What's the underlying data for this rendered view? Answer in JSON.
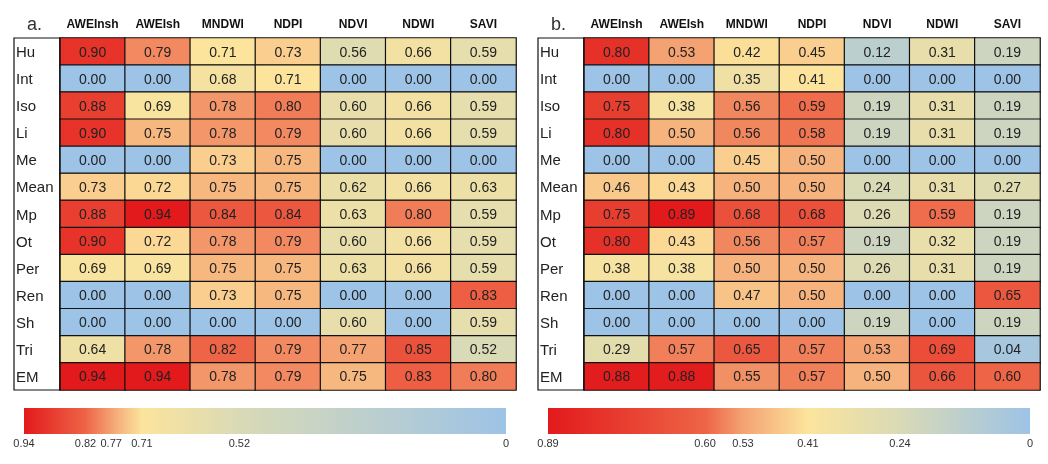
{
  "chart_data": [
    {
      "type": "heatmap",
      "title": "a.",
      "categories": [
        "AWEInsh",
        "AWEIsh",
        "MNDWI",
        "NDPI",
        "NDVI",
        "NDWI",
        "SAVI"
      ],
      "y_categories": [
        "Hu",
        "Int",
        "Iso",
        "Li",
        "Me",
        "Mean",
        "Mp",
        "Ot",
        "Per",
        "Ren",
        "Sh",
        "Tri",
        "EM"
      ],
      "cells": [
        [
          0.9,
          0.79,
          0.71,
          0.73,
          0.56,
          0.66,
          0.59
        ],
        [
          0.0,
          0.0,
          0.68,
          0.71,
          0.0,
          0.0,
          0.0
        ],
        [
          0.88,
          0.69,
          0.78,
          0.8,
          0.6,
          0.66,
          0.59
        ],
        [
          0.9,
          0.75,
          0.78,
          0.79,
          0.6,
          0.66,
          0.59
        ],
        [
          0.0,
          0.0,
          0.73,
          0.75,
          0.0,
          0.0,
          0.0
        ],
        [
          0.73,
          0.72,
          0.75,
          0.75,
          0.62,
          0.66,
          0.63
        ],
        [
          0.88,
          0.94,
          0.84,
          0.84,
          0.63,
          0.8,
          0.59
        ],
        [
          0.9,
          0.72,
          0.78,
          0.79,
          0.6,
          0.66,
          0.59
        ],
        [
          0.69,
          0.69,
          0.75,
          0.75,
          0.63,
          0.66,
          0.59
        ],
        [
          0.0,
          0.0,
          0.73,
          0.75,
          0.0,
          0.0,
          0.83
        ],
        [
          0.0,
          0.0,
          0.0,
          0.0,
          0.6,
          0.0,
          0.59
        ],
        [
          0.64,
          0.78,
          0.82,
          0.79,
          0.77,
          0.85,
          0.52
        ],
        [
          0.94,
          0.94,
          0.78,
          0.79,
          0.75,
          0.83,
          0.8
        ]
      ],
      "cell_labels": [
        [
          "0.90",
          "0.79",
          "0.71",
          "0.73",
          "0.56",
          "0.66",
          "0.59"
        ],
        [
          "0.00",
          "0.00",
          "0.68",
          "0.71",
          "0.00",
          "0.00",
          "0.00"
        ],
        [
          "0.88",
          "0.69",
          "0.78",
          "0.80",
          "0.60",
          "0.66",
          "0.59"
        ],
        [
          "0.90",
          "0.75",
          "0.78",
          "0.79",
          "0.60",
          "0.66",
          "0.59"
        ],
        [
          "0.00",
          "0.00",
          "0.73",
          "0.75",
          "0.00",
          "0.00",
          "0.00"
        ],
        [
          "0.73",
          "0.72",
          "0.75",
          "0.75",
          "0.62",
          "0.66",
          "0.63"
        ],
        [
          "0.88",
          "0.94",
          "0.84",
          "0.84",
          "0.63",
          "0.80",
          "0.59"
        ],
        [
          "0.90",
          "0.72",
          "0.78",
          "0.79",
          "0.60",
          "0.66",
          "0.59"
        ],
        [
          "0.69",
          "0.69",
          "0.75",
          "0.75",
          "0.63",
          "0.66",
          "0.59"
        ],
        [
          "0.00",
          "0.00",
          "0.73",
          "0.75",
          "0.00",
          "0.00",
          "0.83"
        ],
        [
          "0.00",
          "0.00",
          "0.00",
          "0.00",
          "0.60",
          "0.00",
          "0.59"
        ],
        [
          "0.64",
          "0.78",
          "0.82",
          "0.79",
          "0.77",
          "0.85",
          "0.52"
        ],
        [
          "0.94",
          "0.94",
          "0.78",
          "0.79",
          "0.75",
          "0.83",
          "0.80"
        ]
      ],
      "clim": [
        0.94,
        0
      ],
      "cticks": [
        0.94,
        0.82,
        0.77,
        0.71,
        0.52,
        0
      ]
    },
    {
      "type": "heatmap",
      "title": "b.",
      "categories": [
        "AWEInsh",
        "AWEIsh",
        "MNDWI",
        "NDPI",
        "NDVI",
        "NDWI",
        "SAVI"
      ],
      "y_categories": [
        "Hu",
        "Int",
        "Iso",
        "Li",
        "Me",
        "Mean",
        "Mp",
        "Ot",
        "Per",
        "Ren",
        "Sh",
        "Tri",
        "EM"
      ],
      "cells": [
        [
          0.8,
          0.53,
          0.42,
          0.45,
          0.12,
          0.31,
          0.19
        ],
        [
          0.0,
          0.0,
          0.35,
          0.41,
          0.0,
          0.0,
          0.0
        ],
        [
          0.75,
          0.38,
          0.56,
          0.59,
          0.19,
          0.31,
          0.19
        ],
        [
          0.8,
          0.5,
          0.56,
          0.58,
          0.19,
          0.31,
          0.19
        ],
        [
          0.0,
          0.0,
          0.45,
          0.5,
          0.0,
          0.0,
          0.0
        ],
        [
          0.46,
          0.43,
          0.5,
          0.5,
          0.24,
          0.31,
          0.27
        ],
        [
          0.75,
          0.89,
          0.68,
          0.68,
          0.26,
          0.59,
          0.19
        ],
        [
          0.8,
          0.43,
          0.56,
          0.57,
          0.19,
          0.32,
          0.19
        ],
        [
          0.38,
          0.38,
          0.5,
          0.5,
          0.26,
          0.31,
          0.19
        ],
        [
          0.0,
          0.0,
          0.47,
          0.5,
          0.0,
          0.0,
          0.65
        ],
        [
          0.0,
          0.0,
          0.0,
          0.0,
          0.19,
          0.0,
          0.19
        ],
        [
          0.29,
          0.57,
          0.65,
          0.57,
          0.53,
          0.69,
          0.04
        ],
        [
          0.88,
          0.88,
          0.55,
          0.57,
          0.5,
          0.66,
          0.6
        ]
      ],
      "cell_labels": [
        [
          "0.80",
          "0.53",
          "0.42",
          "0.45",
          "0.12",
          "0.31",
          "0.19"
        ],
        [
          "0.00",
          "0.00",
          "0.35",
          "0.41",
          "0.00",
          "0.00",
          "0.00"
        ],
        [
          "0.75",
          "0.38",
          "0.56",
          "0.59",
          "0.19",
          "0.31",
          "0.19"
        ],
        [
          "0.80",
          "0.50",
          "0.56",
          "0.58",
          "0.19",
          "0.31",
          "0.19"
        ],
        [
          "0.00",
          "0.00",
          "0.45",
          "0.50",
          "0.00",
          "0.00",
          "0.00"
        ],
        [
          "0.46",
          "0.43",
          "0.50",
          "0.50",
          "0.24",
          "0.31",
          "0.27"
        ],
        [
          "0.75",
          "0.89",
          "0.68",
          "0.68",
          "0.26",
          "0.59",
          "0.19"
        ],
        [
          "0.80",
          "0.43",
          "0.56",
          "0.57",
          "0.19",
          "0.32",
          "0.19"
        ],
        [
          "0.38",
          "0.38",
          "0.50",
          "0.50",
          "0.26",
          "0.31",
          "0.19"
        ],
        [
          "0.00",
          "0.00",
          "0.47",
          "0.50",
          "0.00",
          "0.00",
          "0.65"
        ],
        [
          "0.00",
          "0.00",
          "0.00",
          "0.00",
          "0.19",
          "0.00",
          "0.19"
        ],
        [
          "0.29",
          "0.57",
          "0.65",
          "0.57",
          "0.53",
          "0.69",
          "0.04"
        ],
        [
          "0.88",
          "0.88",
          "0.55",
          "0.57",
          "0.50",
          "0.66",
          "0.60"
        ]
      ],
      "clim": [
        0.89,
        0
      ],
      "cticks": [
        0.89,
        {
          "value": 0.6,
          "label": "0.60"
        },
        0.53,
        0.41,
        0.24,
        0
      ]
    }
  ]
}
